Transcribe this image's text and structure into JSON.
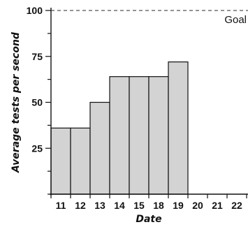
{
  "chart_data": {
    "type": "bar",
    "categories": [
      "11",
      "12",
      "13",
      "14",
      "15",
      "18",
      "19",
      "20",
      "21",
      "22"
    ],
    "values": [
      36,
      36,
      50,
      64,
      64,
      64,
      72,
      null,
      null,
      null
    ],
    "xlabel": "Date",
    "ylabel": "Average tests per second",
    "ylim": [
      0,
      100
    ],
    "yticks": [
      25,
      50,
      75,
      100
    ],
    "goal": {
      "value": 100,
      "label": "Goal"
    },
    "bar_color": "#d3d3d3",
    "grid": false
  }
}
